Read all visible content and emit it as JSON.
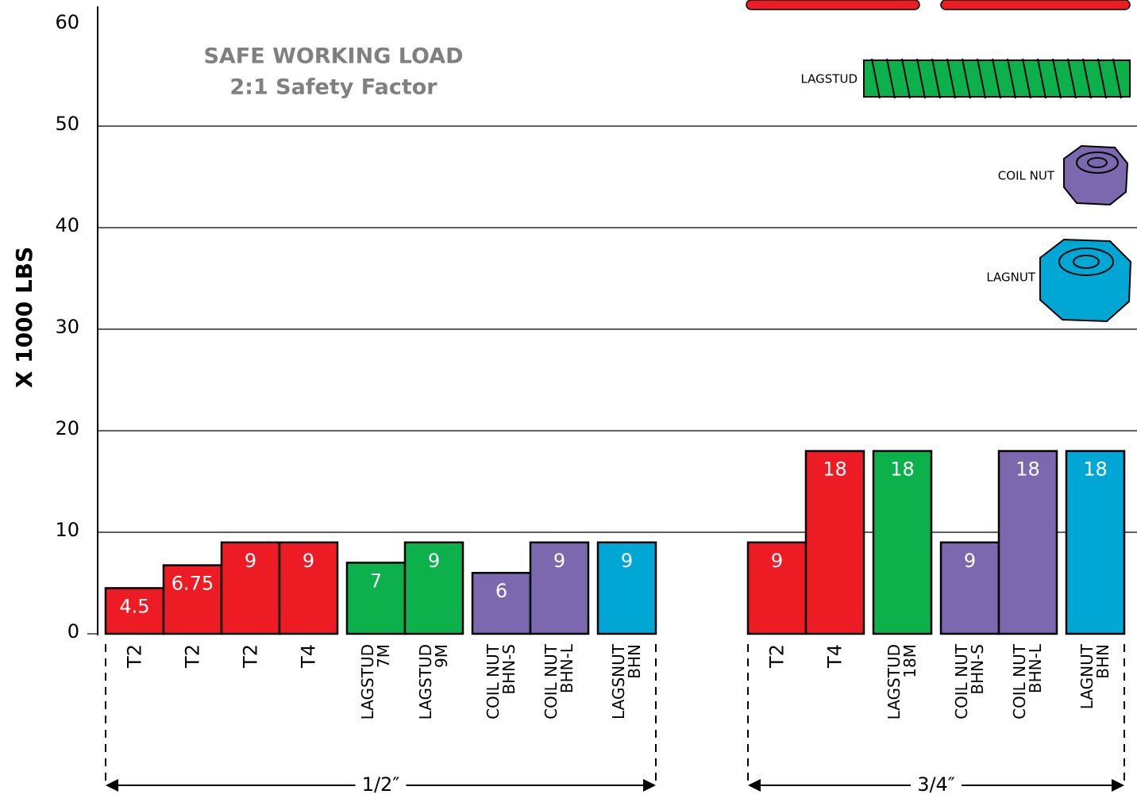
{
  "chart_data": {
    "type": "bar",
    "title": "SAFE WORKING LOAD",
    "subtitle": "2:1 Safety Factor",
    "y_label": "X 1000 LBS",
    "ylim": [
      0,
      60
    ],
    "yticks": [
      0,
      10,
      20,
      30,
      40,
      50,
      60
    ],
    "grid": true,
    "groups": [
      {
        "label": "1/2″",
        "categories": [
          [
            "T2"
          ],
          [
            "T2"
          ],
          [
            "T2"
          ],
          [
            "T4"
          ],
          [
            "LAGSTUD",
            "7M"
          ],
          [
            "LAGSTUD",
            "9M"
          ],
          [
            "COIL NUT",
            "BHN-S"
          ],
          [
            "COIL NUT",
            "BHN-L"
          ],
          [
            "LAGSNUT",
            "BHN"
          ]
        ],
        "values": [
          4.5,
          6.75,
          9,
          9,
          7,
          9,
          6,
          9,
          9
        ],
        "colors": [
          "#ed1c24",
          "#ed1c24",
          "#ed1c24",
          "#ed1c24",
          "#0db14b",
          "#0db14b",
          "#7b68ae",
          "#7b68ae",
          "#00a7d4"
        ]
      },
      {
        "label": "3/4″",
        "categories": [
          [
            "T2"
          ],
          [
            "T4"
          ],
          [
            "LAGSTUD",
            "18M"
          ],
          [
            "COIL NUT",
            "BHN-S"
          ],
          [
            "COIL NUT",
            "BHN-L"
          ],
          [
            "LAGNUT",
            "BHN"
          ]
        ],
        "values": [
          9,
          18,
          18,
          9,
          18,
          18
        ],
        "colors": [
          "#ed1c24",
          "#ed1c24",
          "#0db14b",
          "#7b68ae",
          "#7b68ae",
          "#00a7d4"
        ]
      }
    ],
    "pictograms": [
      {
        "label": "LAGSTUD"
      },
      {
        "label": "COIL NUT"
      },
      {
        "label": "LAGNUT"
      }
    ]
  }
}
